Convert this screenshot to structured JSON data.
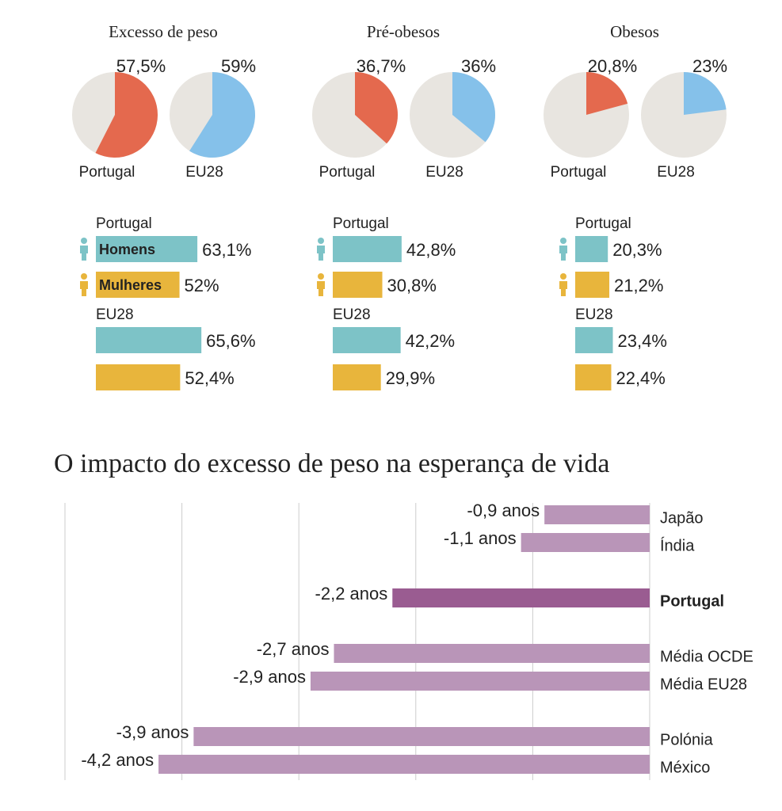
{
  "chart_data": [
    {
      "type": "pie",
      "title": "Excesso de peso",
      "categories": [
        "Portugal",
        "EU28"
      ],
      "values": [
        57.5,
        59
      ],
      "value_labels": [
        "57,5%",
        "59%"
      ],
      "colors": [
        "#e4694e",
        "#85c1ea"
      ],
      "rest_color": "#e8e5e0"
    },
    {
      "type": "pie",
      "title": "Pré-obesos",
      "categories": [
        "Portugal",
        "EU28"
      ],
      "values": [
        36.7,
        36
      ],
      "value_labels": [
        "36,7%",
        "36%"
      ],
      "colors": [
        "#e4694e",
        "#85c1ea"
      ],
      "rest_color": "#e8e5e0"
    },
    {
      "type": "pie",
      "title": "Obesos",
      "categories": [
        "Portugal",
        "EU28"
      ],
      "values": [
        20.8,
        23
      ],
      "value_labels": [
        "20,8%",
        "23%"
      ],
      "colors": [
        "#e4694e",
        "#85c1ea"
      ],
      "rest_color": "#e8e5e0"
    },
    {
      "type": "bar",
      "orientation": "horizontal",
      "xlim": [
        0,
        100
      ],
      "categories": [
        "Portugal",
        "EU28"
      ],
      "series": [
        {
          "name": "Homens",
          "color": "#7dc3c7",
          "values": [
            63.1,
            65.6
          ],
          "value_labels": [
            "63,1%",
            "65,6%"
          ]
        },
        {
          "name": "Mulheres",
          "color": "#e8b53c",
          "values": [
            52,
            52.4
          ],
          "value_labels": [
            "52%",
            "52,4%"
          ]
        }
      ]
    },
    {
      "type": "bar",
      "orientation": "horizontal",
      "xlim": [
        0,
        100
      ],
      "categories": [
        "Portugal",
        "EU28"
      ],
      "series": [
        {
          "color": "#7dc3c7",
          "values": [
            42.8,
            42.2
          ],
          "value_labels": [
            "42,8%",
            "42,2%"
          ]
        },
        {
          "color": "#e8b53c",
          "values": [
            30.8,
            29.9
          ],
          "value_labels": [
            "30,8%",
            "29,9%"
          ]
        }
      ]
    },
    {
      "type": "bar",
      "orientation": "horizontal",
      "xlim": [
        0,
        100
      ],
      "categories": [
        "Portugal",
        "EU28"
      ],
      "series": [
        {
          "color": "#7dc3c7",
          "values": [
            20.3,
            23.4
          ],
          "value_labels": [
            "20,3%",
            "23,4%"
          ]
        },
        {
          "color": "#e8b53c",
          "values": [
            21.2,
            22.4
          ],
          "value_labels": [
            "21,2%",
            "22,4%"
          ]
        }
      ]
    },
    {
      "type": "bar",
      "orientation": "horizontal",
      "title": "O impacto do excesso de peso na esperança de vida",
      "categories": [
        "Japão",
        "Índia",
        null,
        "Portugal",
        null,
        "Média OCDE",
        "Média EU28",
        null,
        "Polónia",
        "México"
      ],
      "values": [
        -0.9,
        -1.1,
        null,
        -2.2,
        null,
        -2.7,
        -2.9,
        null,
        -3.9,
        -4.2
      ],
      "value_labels": [
        "-0,9 anos",
        "-1,1 anos",
        null,
        "-2,2 anos",
        null,
        "-2,7 anos",
        "-2,9 anos",
        null,
        "-3,9 anos",
        "-4,2 anos"
      ],
      "color": "#b995b8",
      "highlight": 3,
      "highlight_color": "#9a5c91",
      "xlim": [
        -5,
        0
      ],
      "xgrid": [
        -5,
        -4,
        -3,
        -2,
        -1,
        0
      ],
      "grid": true
    }
  ]
}
